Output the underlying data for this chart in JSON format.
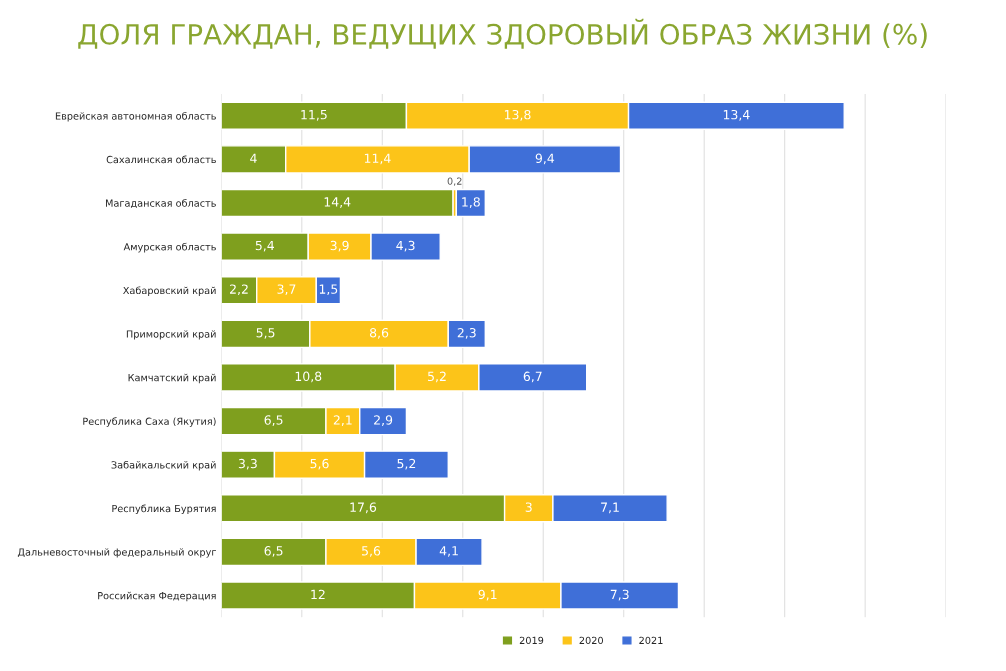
{
  "chart_data": {
    "type": "bar",
    "orientation": "horizontal",
    "stacked": true,
    "title": "ДОЛЯ ГРАЖДАН, ВЕДУЩИХ ЗДОРОВЫЙ ОБРАЗ ЖИЗНИ (%)",
    "categories": [
      "Еврейская автономная область",
      "Сахалинская область",
      "Магаданская область",
      "Амурская область",
      "Хабаровский край",
      "Приморский край",
      "Камчатский край",
      "Республика Саха (Якутия)",
      "Забайкальский край",
      "Республика Бурятия",
      "Дальневосточный федеральный округ",
      "Российская Федерация"
    ],
    "series": [
      {
        "name": "2019",
        "color": "#7f9f1e",
        "values": [
          11.5,
          4,
          14.4,
          5.4,
          2.2,
          5.5,
          10.8,
          6.5,
          3.3,
          17.6,
          6.5,
          12
        ],
        "value_labels": [
          "11,5",
          "4",
          "14,4",
          "5,4",
          "2,2",
          "5,5",
          "10,8",
          "6,5",
          "3,3",
          "17,6",
          "6,5",
          "12"
        ]
      },
      {
        "name": "2020",
        "color": "#fcc419",
        "values": [
          13.8,
          11.4,
          0.2,
          3.9,
          3.7,
          8.6,
          5.2,
          2.1,
          5.6,
          3,
          5.6,
          9.1
        ],
        "value_labels": [
          "13,8",
          "11,4",
          "0,2",
          "3,9",
          "3,7",
          "8,6",
          "5,2",
          "2,1",
          "5,6",
          "3",
          "5,6",
          "9,1"
        ]
      },
      {
        "name": "2021",
        "color": "#3f6fd8",
        "values": [
          13.4,
          9.4,
          1.8,
          4.3,
          1.5,
          2.3,
          6.7,
          2.9,
          5.2,
          7.1,
          4.1,
          7.3
        ],
        "value_labels": [
          "13,4",
          "9,4",
          "1,8",
          "4,3",
          "1,5",
          "2,3",
          "6,7",
          "2,9",
          "5,2",
          "7,1",
          "4,1",
          "7,3"
        ]
      }
    ],
    "xlim": [
      0,
      45
    ],
    "xticks": [
      {
        "value": 0,
        "label": null
      },
      {
        "value": 5,
        "label": null
      },
      {
        "value": 10,
        "label": null
      },
      {
        "value": 15,
        "label": null
      },
      {
        "value": 20,
        "label": null
      },
      {
        "value": 25,
        "label": null
      },
      {
        "value": 30,
        "label": null
      },
      {
        "value": 35,
        "label": null
      },
      {
        "value": 40,
        "label": null
      },
      {
        "value": 45,
        "label": null
      }
    ],
    "tick_labels": "y",
    "grid": "x",
    "legend": "bottom"
  }
}
